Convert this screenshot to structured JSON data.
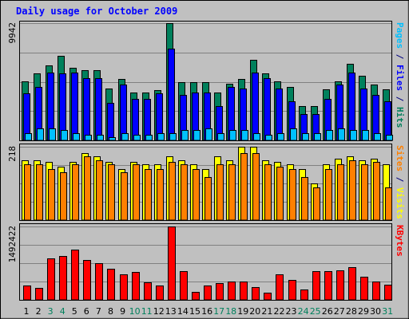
{
  "chart_data": {
    "type": "bar",
    "title": "Daily usage for October 2009",
    "categories": [
      "1",
      "2",
      "3",
      "4",
      "5",
      "6",
      "7",
      "8",
      "9",
      "10",
      "11",
      "12",
      "13",
      "14",
      "15",
      "16",
      "17",
      "18",
      "19",
      "20",
      "21",
      "22",
      "23",
      "24",
      "25",
      "26",
      "27",
      "28",
      "29",
      "30",
      "31"
    ],
    "weekend_days": [
      "3",
      "4",
      "10",
      "11",
      "17",
      "18",
      "24",
      "25",
      "31"
    ],
    "panels": [
      {
        "id": "hits",
        "ymax": 9942,
        "ymax_label": "9942",
        "legend": [
          {
            "text": "Pages",
            "color": "#00c0ff"
          },
          {
            "text": " / ",
            "color": "#000080"
          },
          {
            "text": "Files",
            "color": "#0000ff"
          },
          {
            "text": " / ",
            "color": "#000080"
          },
          {
            "text": "Hits",
            "color": "#00805c"
          }
        ],
        "series": [
          {
            "name": "Hits",
            "color": "#00805c",
            "values": [
              5019,
              5668,
              6359,
              7147,
              6167,
              5928,
              5928,
              4391,
              5181,
              4067,
              4067,
              4229,
              9942,
              4958,
              4958,
              4958,
              4067,
              4796,
              5181,
              6845,
              5668,
              5020,
              4553,
              2934,
              2934,
              4309,
              5019,
              6488,
              5508,
              4715,
              4309
            ]
          },
          {
            "name": "Files",
            "color": "#0000ff",
            "values": [
              3986,
              4553,
              5749,
              5668,
              5749,
              5263,
              5263,
              3177,
              4715,
              3500,
              3500,
              3985,
              7777,
              3824,
              4067,
              4067,
              2934,
              4553,
              4391,
              5749,
              5263,
              4391,
              3338,
              2204,
              2204,
              3500,
              4715,
              5749,
              4391,
              3824,
              3338
            ]
          },
          {
            "name": "Pages",
            "color": "#00c0ff",
            "values": [
              606,
              1012,
              1012,
              849,
              606,
              444,
              444,
              283,
              606,
              444,
              444,
              606,
              606,
              849,
              849,
              1012,
              606,
              849,
              849,
              606,
              444,
              606,
              1012,
              606,
              606,
              849,
              1012,
              849,
              849,
              606,
              444
            ]
          }
        ]
      },
      {
        "id": "visits",
        "ymax": 218,
        "ymax_label": "218",
        "legend": [
          {
            "text": "Sites",
            "color": "#ff8000"
          },
          {
            "text": " / ",
            "color": "#000080"
          },
          {
            "text": "Visits",
            "color": "#ffff00"
          }
        ],
        "series": [
          {
            "name": "Visits",
            "color": "#ffff00",
            "values": [
              178,
              178,
              172,
              158,
              172,
              200,
              189,
              172,
              151,
              172,
              165,
              165,
              189,
              178,
              165,
              151,
              189,
              178,
              218,
              218,
              178,
              172,
              165,
              151,
              108,
              165,
              183,
              189,
              178,
              183,
              165
            ]
          },
          {
            "name": "Sites",
            "color": "#ff8000",
            "values": [
              165,
              165,
              151,
              141,
              165,
              189,
              178,
              165,
              141,
              165,
              151,
              151,
              172,
              165,
              151,
              129,
              165,
              165,
              200,
              200,
              165,
              158,
              151,
              129,
              97,
              151,
              165,
              178,
              165,
              172,
              97
            ]
          }
        ]
      },
      {
        "id": "kbytes",
        "ymax": 1492422,
        "ymax_label": "1492422",
        "legend": [
          {
            "text": "KBytes",
            "color": "#ff0000"
          }
        ],
        "series": [
          {
            "name": "KBytes",
            "color": "#ff0000",
            "values": [
              300000,
              241000,
              839000,
              896000,
              1028000,
              806000,
              740000,
              631000,
              522000,
              575000,
              359000,
              292000,
              1492422,
              592000,
              164000,
              300000,
              343000,
              366000,
              366000,
              253000,
              152000,
              522000,
              407000,
              205000,
              581000,
              581000,
              608000,
              672000,
              475000,
              373000,
              307000
            ]
          }
        ]
      }
    ]
  }
}
